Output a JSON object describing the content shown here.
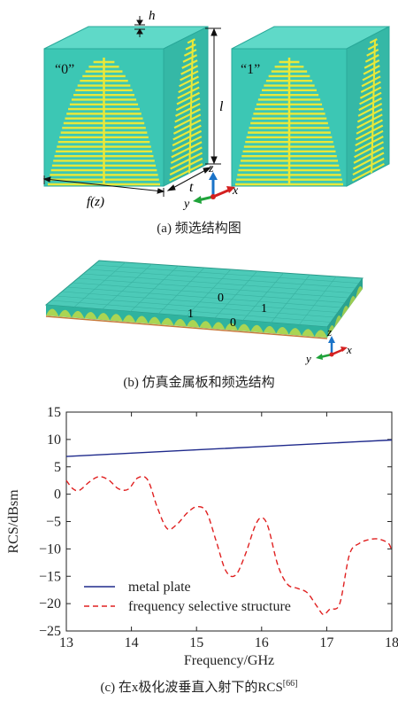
{
  "figure_a": {
    "caption": "(a) 频选结构图",
    "label_h": "h",
    "label_l": "l",
    "label_t": "t",
    "label_fz": "f(z)",
    "label_cell0": "“0”",
    "label_cell1": "“1”",
    "axis_x": "x",
    "axis_y": "y",
    "axis_z": "z"
  },
  "figure_b": {
    "caption": "(b) 仿真金属板和频选结构",
    "codes": [
      "0",
      "1",
      "1",
      "0"
    ],
    "axis_x": "x",
    "axis_y": "y",
    "axis_z": "z"
  },
  "figure_c": {
    "caption_main": "(c) 在x极化波垂直入射下的RCS",
    "caption_ref": "[66]"
  },
  "colors": {
    "cube": "#3cc7b4",
    "stripe": "#e8e83a",
    "metal": "#1f2a8c",
    "fss": "#e02020"
  },
  "chart_data": {
    "type": "line",
    "xlabel": "Frequency/GHz",
    "ylabel": "RCS/dBsm",
    "xlim": [
      13,
      18
    ],
    "ylim": [
      -25,
      15
    ],
    "xticks": [
      13,
      14,
      15,
      16,
      17,
      18
    ],
    "yticks": [
      15,
      10,
      5,
      0,
      -5,
      -10,
      -15,
      -20,
      -25
    ],
    "grid": false,
    "legend_position": "bottom-left",
    "series": [
      {
        "name": "metal plate",
        "style": "solid",
        "color": "#1f2a8c",
        "x": [
          13,
          14,
          15,
          16,
          17,
          18
        ],
        "y": [
          6.9,
          7.5,
          8.1,
          8.7,
          9.3,
          9.9
        ]
      },
      {
        "name": "frequency selective structure",
        "style": "dashed",
        "color": "#e02020",
        "x": [
          13,
          13.1,
          13.2,
          13.35,
          13.5,
          13.65,
          13.8,
          13.95,
          14.1,
          14.25,
          14.4,
          14.55,
          14.7,
          14.85,
          15.0,
          15.15,
          15.3,
          15.45,
          15.6,
          15.75,
          15.9,
          16.0,
          16.1,
          16.25,
          16.4,
          16.55,
          16.7,
          16.85,
          16.95,
          17.05,
          17.2,
          17.35,
          17.5,
          17.65,
          17.8,
          17.95,
          18
        ],
        "y": [
          2.5,
          1.0,
          0.7,
          2.2,
          3.2,
          2.6,
          1.0,
          0.9,
          3.0,
          2.6,
          -2.5,
          -6.3,
          -5.5,
          -3.5,
          -2.3,
          -3.2,
          -8.5,
          -14.0,
          -14.8,
          -11.0,
          -5.8,
          -4.3,
          -6.0,
          -13.0,
          -16.5,
          -17.2,
          -18.0,
          -20.5,
          -22.0,
          -21.0,
          -20.0,
          -11.0,
          -9.0,
          -8.3,
          -8.2,
          -9.0,
          -10.5
        ]
      }
    ]
  }
}
